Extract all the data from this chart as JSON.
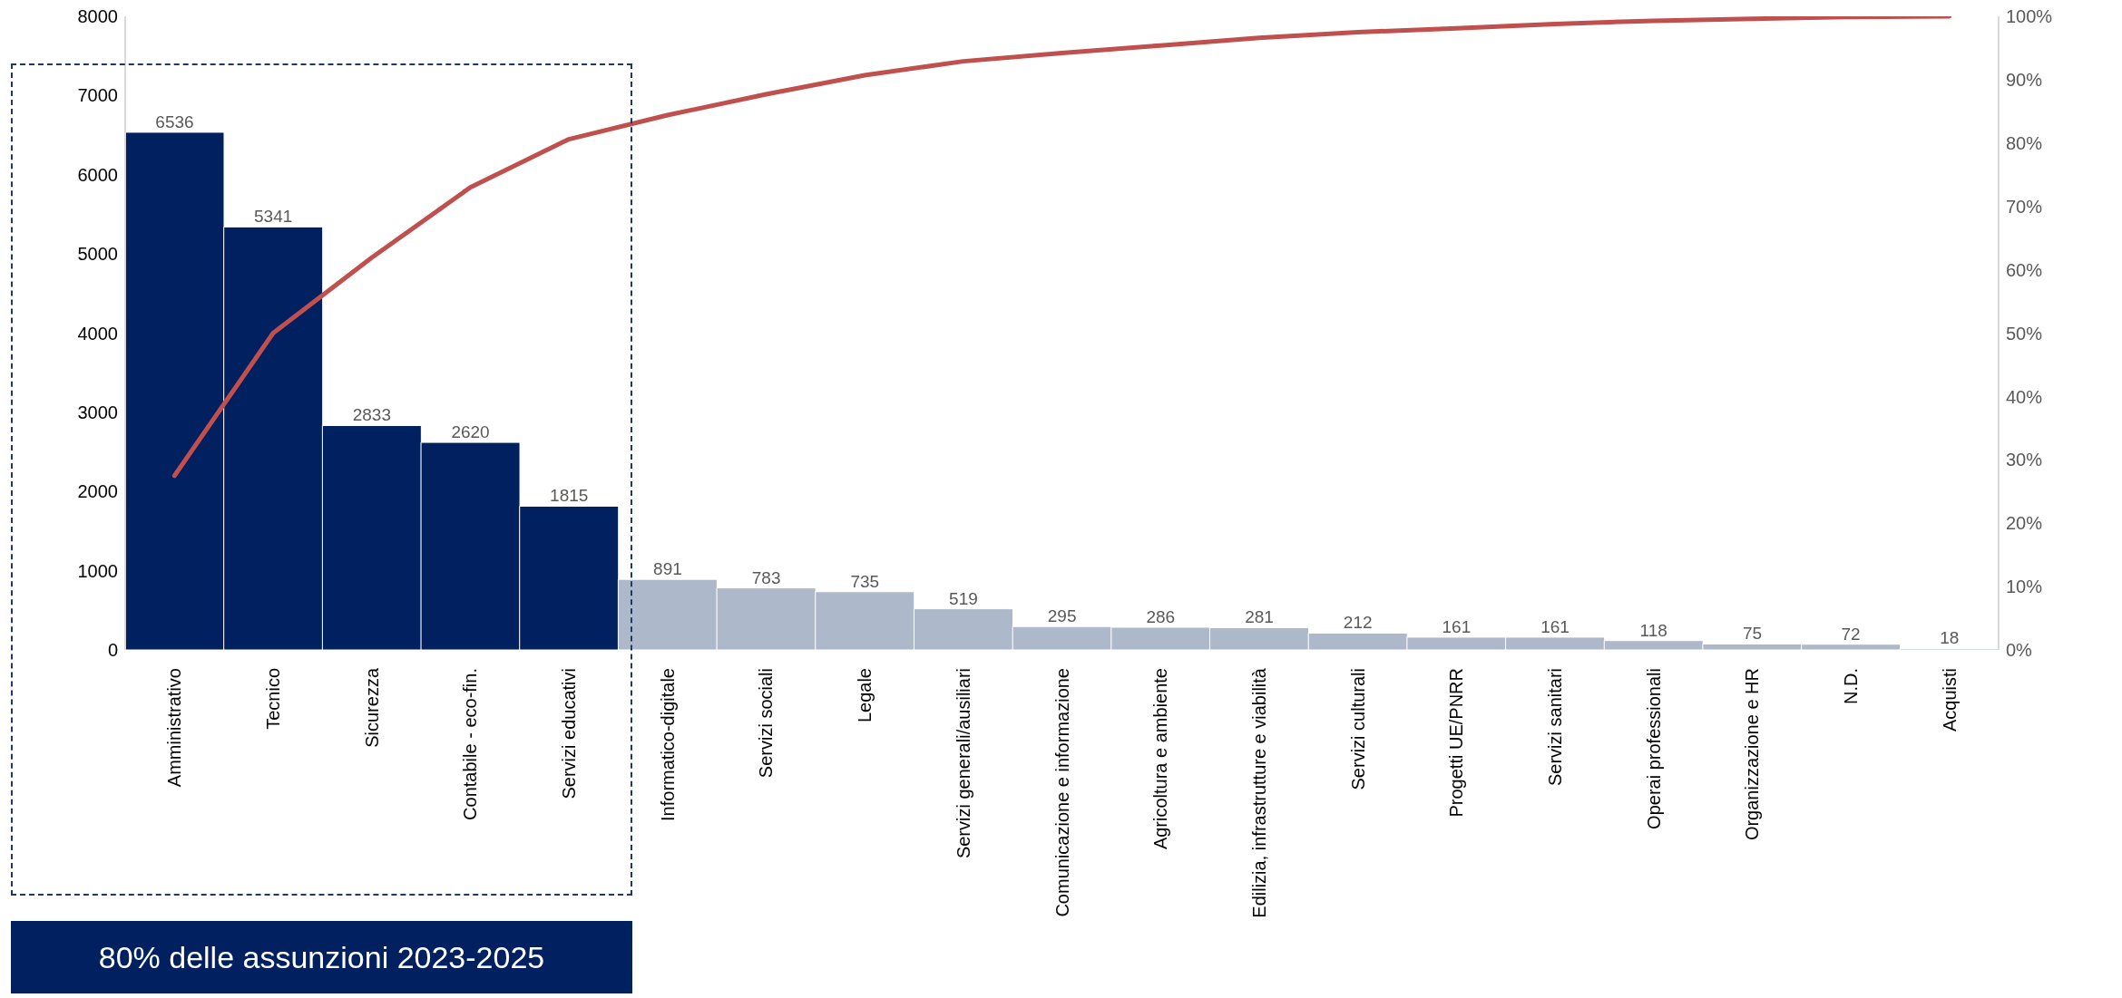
{
  "chart_data": {
    "type": "bar",
    "categories": [
      "Amministrativo",
      "Tecnico",
      "Sicurezza",
      "Contabile - eco-fin.",
      "Servizi educativi",
      "Informatico-digitale",
      "Servizi sociali",
      "Legale",
      "Servizi generali/ausiliari",
      "Comunicazione e informazione",
      "Agricoltura e ambiente",
      "Edilizia, infrastrutture e viabilità",
      "Servizi culturali",
      "Progetti UE/PNRR",
      "Servizi sanitari",
      "Operai professionali",
      "Organizzazione e HR",
      "N.D.",
      "Acquisti"
    ],
    "series": [
      {
        "data_labels": true,
        "colors": [
          "#002060",
          "#002060",
          "#002060",
          "#002060",
          "#002060",
          "#adb9ca",
          "#adb9ca",
          "#adb9ca",
          "#adb9ca",
          "#adb9ca",
          "#adb9ca",
          "#adb9ca",
          "#adb9ca",
          "#adb9ca",
          "#adb9ca",
          "#adb9ca",
          "#adb9ca",
          "#adb9ca",
          "#adb9ca"
        ],
        "values": [
          6536,
          5341,
          2833,
          2620,
          1815,
          891,
          783,
          735,
          519,
          295,
          286,
          281,
          212,
          161,
          161,
          118,
          75,
          72,
          18
        ]
      },
      {
        "type": "line",
        "axis": "y2",
        "color": "#c0504d",
        "values": [
          27.5,
          50.0,
          61.9,
          73.0,
          80.6,
          84.4,
          87.7,
          90.7,
          92.9,
          94.2,
          95.4,
          96.6,
          97.5,
          98.1,
          98.8,
          99.3,
          99.6,
          99.9,
          100
        ]
      }
    ],
    "ylim": [
      0,
      8000
    ],
    "yticks": [
      0,
      1000,
      2000,
      3000,
      4000,
      5000,
      6000,
      7000,
      8000
    ],
    "y2lim": [
      0,
      100
    ],
    "y2ticks": [
      {
        "value": 0,
        "label": "0%"
      },
      {
        "value": 10,
        "label": "10%"
      },
      {
        "value": 20,
        "label": "20%"
      },
      {
        "value": 30,
        "label": "30%"
      },
      {
        "value": 40,
        "label": "40%"
      },
      {
        "value": 50,
        "label": "50%"
      },
      {
        "value": 60,
        "label": "60%"
      },
      {
        "value": 70,
        "label": "70%"
      },
      {
        "value": 80,
        "label": "80%"
      },
      {
        "value": 90,
        "label": "90%"
      },
      {
        "value": 100,
        "label": "100%"
      }
    ],
    "grid": false,
    "legend": false,
    "marker": "none",
    "line_style": "solid",
    "annotations": [
      "80% delle assunzioni 2023-2025"
    ]
  }
}
